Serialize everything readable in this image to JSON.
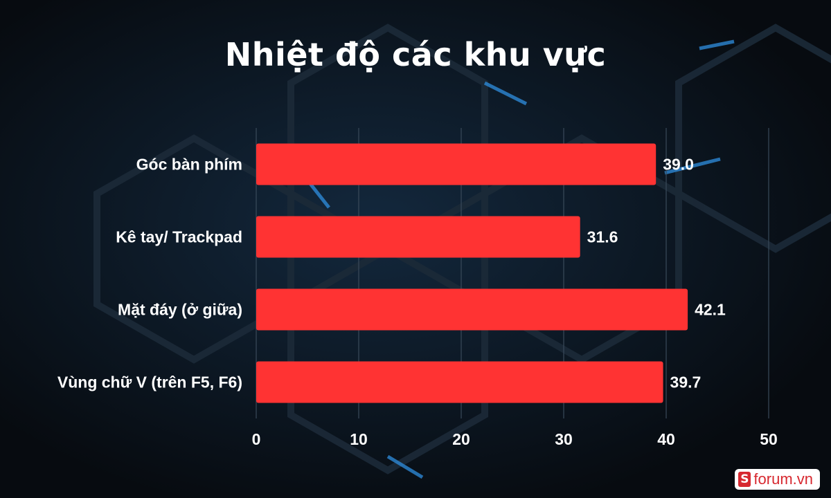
{
  "title": "Nhiệt độ các khu vực",
  "watermark": {
    "icon": "S",
    "text": "forum.vn"
  },
  "colors": {
    "bar": "#ff3333",
    "grid": "#3a4a5a",
    "background": "#0b1117",
    "accent_glow": "#2f8fe0"
  },
  "chart_data": {
    "type": "bar",
    "orientation": "horizontal",
    "title": "Nhiệt độ các khu vực",
    "categories": [
      "Góc bàn phím",
      "Kê tay/ Trackpad",
      "Mặt đáy (ở giữa)",
      "Vùng chữ V (trên F5, F6)"
    ],
    "values": [
      39.0,
      31.6,
      42.1,
      39.7
    ],
    "value_labels": [
      "39.0",
      "31.6",
      "42.1",
      "39.7"
    ],
    "xlim": [
      0,
      50
    ],
    "xticks": [
      "0",
      "10",
      "20",
      "30",
      "40",
      "50"
    ],
    "grid": true,
    "legend": "none",
    "xlabel": "",
    "ylabel": ""
  }
}
